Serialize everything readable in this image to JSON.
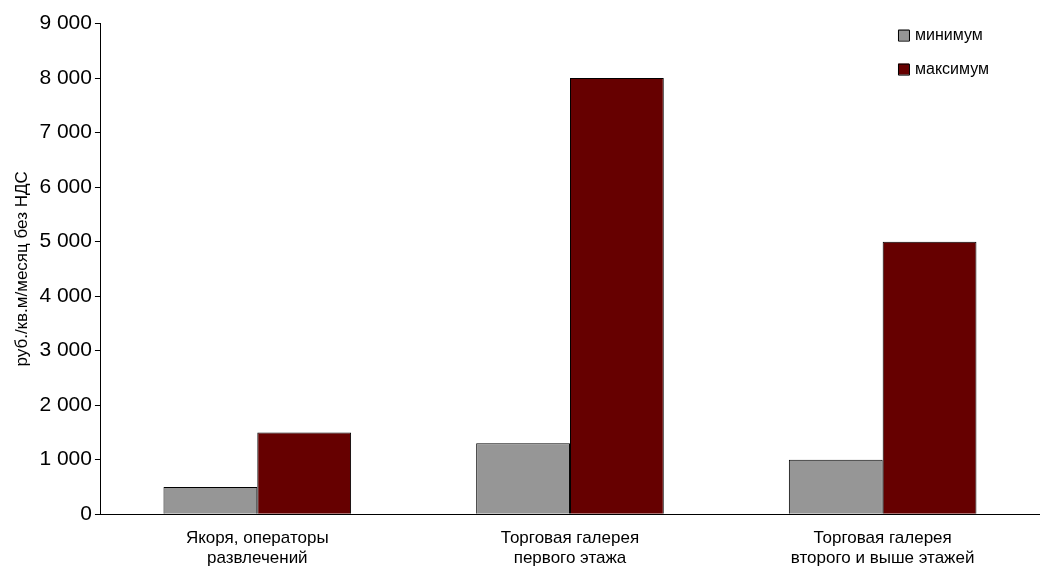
{
  "chart_data": {
    "type": "bar",
    "ylabel": "руб./кв.м/месяц без НДС",
    "categories": [
      "Якоря, операторы развлечений",
      "Торговая галерея первого этажа",
      "Торговая галерея второго и выше этажей"
    ],
    "series": [
      {
        "name": "минимум",
        "color": "#969696",
        "values": [
          500,
          1300,
          1000
        ]
      },
      {
        "name": "максимум",
        "color": "#660000",
        "values": [
          1500,
          8000,
          5000
        ]
      }
    ],
    "ylim": [
      0,
      9000
    ],
    "yticks": [
      {
        "value": 0,
        "label": "0"
      },
      {
        "value": 1000,
        "label": "1 000"
      },
      {
        "value": 2000,
        "label": "2 000"
      },
      {
        "value": 3000,
        "label": "3 000"
      },
      {
        "value": 4000,
        "label": "4 000"
      },
      {
        "value": 5000,
        "label": "5 000"
      },
      {
        "value": 6000,
        "label": "6 000"
      },
      {
        "value": 7000,
        "label": "7 000"
      },
      {
        "value": 8000,
        "label": "8 000"
      },
      {
        "value": 9000,
        "label": "9 000"
      }
    ],
    "grid": false,
    "legend": "top right"
  }
}
